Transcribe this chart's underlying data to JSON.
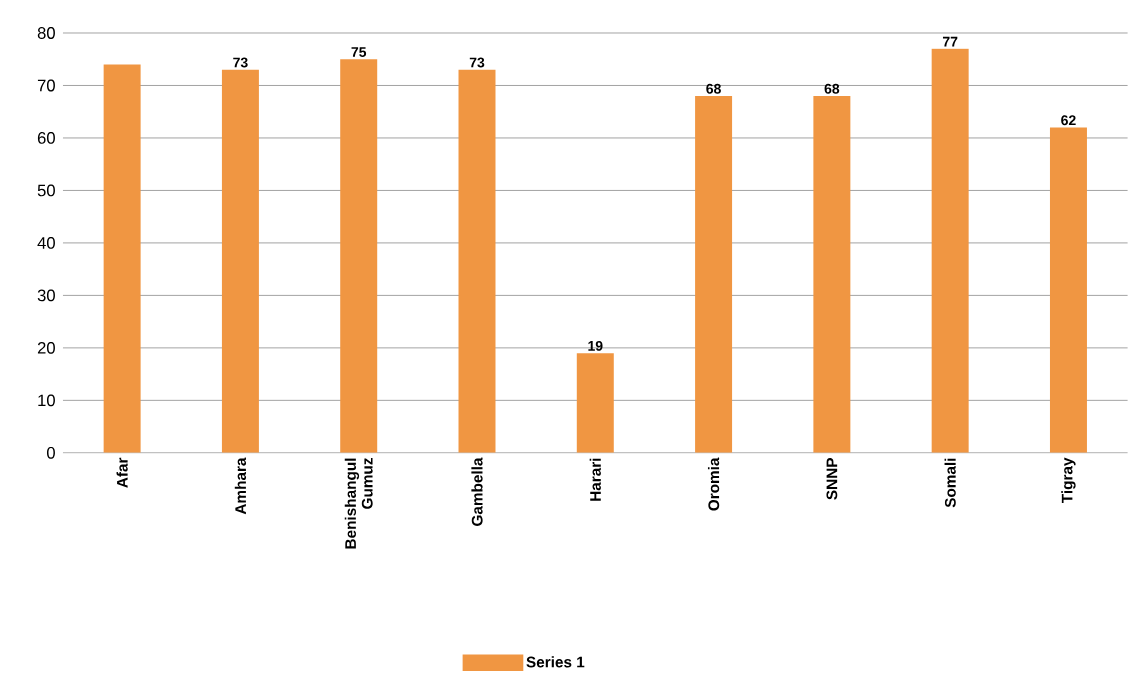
{
  "chart_data": {
    "type": "bar",
    "categories": [
      "Afar",
      "Amhara",
      "Benishangul Gumuz",
      "Gambella",
      "Harari",
      "Oromia",
      "SNNP",
      "Somali",
      "Tigray"
    ],
    "series": [
      {
        "name": "Series 1",
        "color": "#f09642",
        "values": [
          74,
          73,
          75,
          73,
          19,
          68,
          68,
          77,
          62
        ],
        "value_labels": [
          null,
          "73",
          "75",
          "73",
          "19",
          "68",
          "68",
          "77",
          "62"
        ]
      }
    ],
    "ylim": [
      0,
      80
    ],
    "yticks": [
      0,
      10,
      20,
      30,
      40,
      50,
      60,
      70,
      80
    ],
    "grid": "y",
    "legend": "bottom"
  }
}
